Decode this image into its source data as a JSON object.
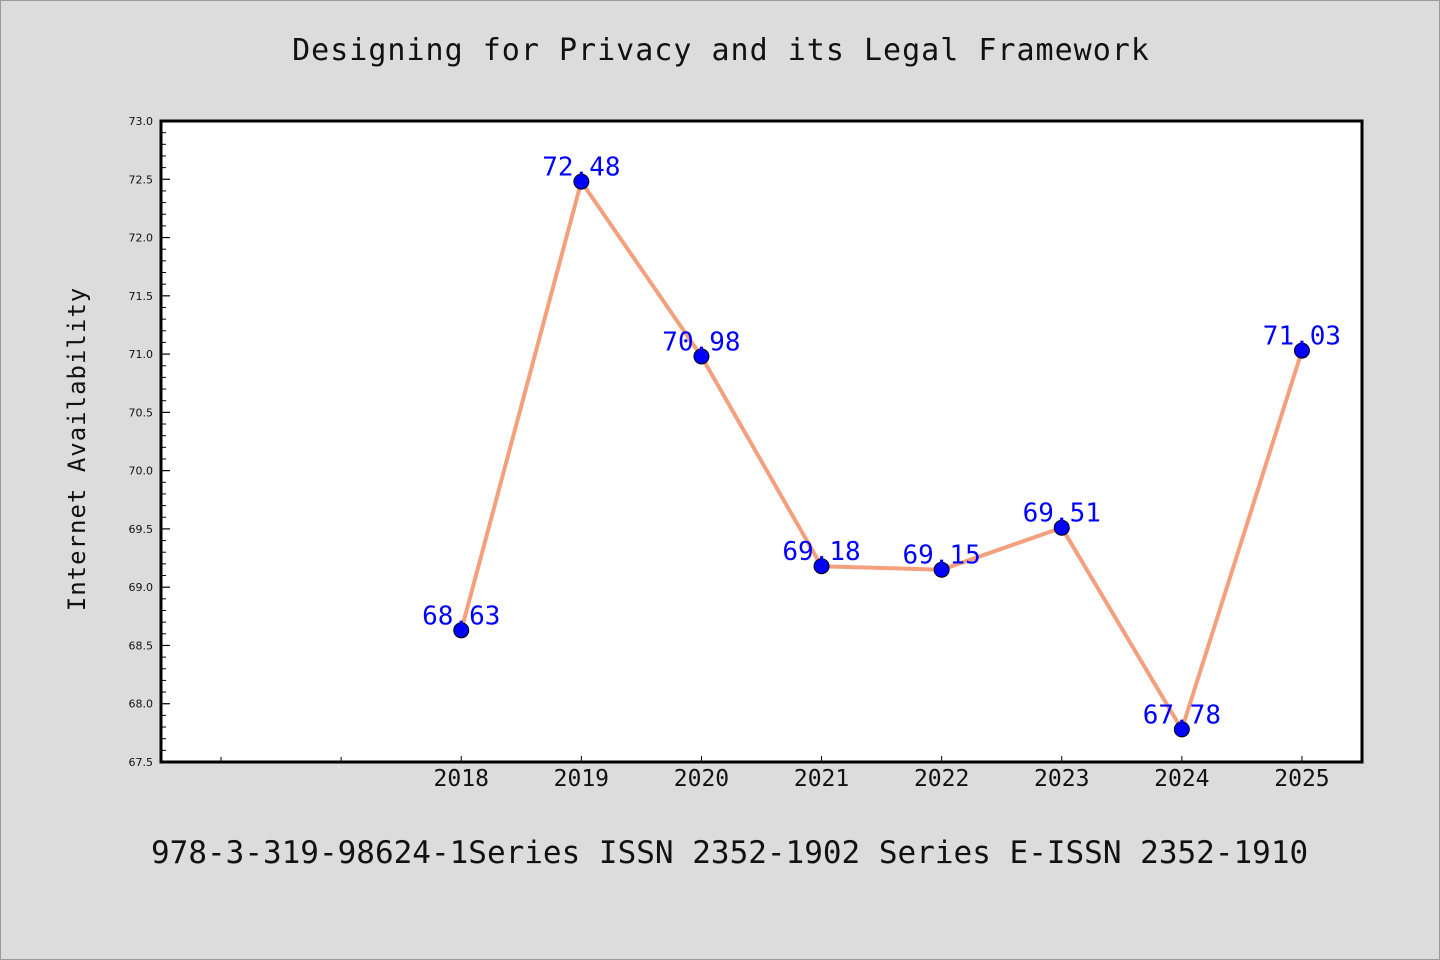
{
  "chart_data": {
    "type": "line",
    "title": "Designing for Privacy and its Legal Framework",
    "xlabel": "",
    "ylabel": "Internet Availability",
    "x": [
      "2018",
      "2019",
      "2020",
      "2021",
      "2022",
      "2023",
      "2024",
      "2025"
    ],
    "series": [
      {
        "values": [
          68.63,
          72.48,
          70.98,
          69.18,
          69.15,
          69.51,
          67.78,
          71.03
        ],
        "line_color": "#f4a07e",
        "marker_color": "#0000ff"
      }
    ],
    "data_labels": [
      "68.63",
      "72.48",
      "70.98",
      "69.18",
      "69.15",
      "69.51",
      "67.78",
      "71.03"
    ],
    "y_ticks": [
      "67.5",
      "68.0",
      "68.5",
      "69.0",
      "69.5",
      "70.0",
      "70.5",
      "71.0",
      "71.5",
      "72.0",
      "72.5",
      "73.0"
    ],
    "ylim": [
      67.5,
      73.0
    ],
    "grid": false,
    "label_color": "#0000ff"
  },
  "footer": "978-3-319-98624-1Series ISSN 2352-1902 Series E-ISSN 2352-1910"
}
